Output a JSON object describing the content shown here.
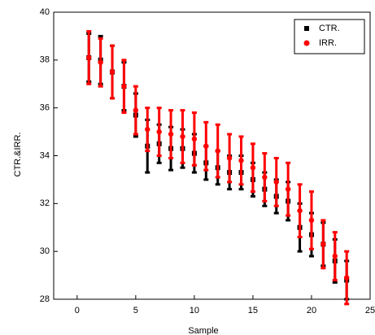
{
  "chart_data": {
    "type": "scatter",
    "x_label": "Sample",
    "y_label": "CTR.&IRR.",
    "x": [
      1,
      2,
      3,
      4,
      5,
      6,
      7,
      8,
      9,
      10,
      11,
      12,
      13,
      14,
      15,
      16,
      17,
      18,
      19,
      20,
      21,
      22,
      23
    ],
    "series": [
      {
        "name": "CTR.",
        "color": "#000000",
        "marker": "square",
        "values": [
          38.1,
          38.0,
          37.5,
          36.9,
          35.7,
          34.4,
          34.5,
          34.3,
          34.3,
          34.1,
          33.7,
          33.5,
          33.3,
          33.3,
          33.0,
          32.6,
          32.3,
          32.1,
          31.0,
          30.7,
          30.3,
          29.6,
          28.8
        ],
        "errors": [
          1.0,
          1.0,
          1.1,
          1.0,
          0.9,
          1.1,
          0.8,
          0.9,
          0.8,
          0.8,
          0.7,
          0.7,
          0.7,
          0.7,
          0.7,
          0.7,
          0.7,
          0.8,
          1.0,
          0.9,
          0.9,
          0.9,
          0.8
        ]
      },
      {
        "name": "IRR.",
        "color": "#ff0000",
        "marker": "circle",
        "values": [
          38.1,
          37.9,
          37.5,
          36.9,
          35.9,
          35.1,
          35.0,
          34.9,
          34.8,
          34.7,
          34.4,
          34.2,
          33.9,
          33.8,
          33.5,
          33.1,
          32.9,
          32.6,
          31.7,
          31.3,
          30.3,
          29.8,
          28.9
        ],
        "errors": [
          1.1,
          1.0,
          1.1,
          1.1,
          1.0,
          0.9,
          1.0,
          1.0,
          1.1,
          1.1,
          1.0,
          1.1,
          1.0,
          1.0,
          1.0,
          1.0,
          1.0,
          1.1,
          1.1,
          1.2,
          1.0,
          1.0,
          1.1
        ]
      }
    ],
    "xlim": [
      -2,
      25
    ],
    "xticks": [
      0,
      5,
      10,
      15,
      20,
      25
    ],
    "ylim": [
      28,
      40
    ],
    "yticks": [
      28,
      30,
      32,
      34,
      36,
      38,
      40
    ],
    "legend": "top-right"
  }
}
